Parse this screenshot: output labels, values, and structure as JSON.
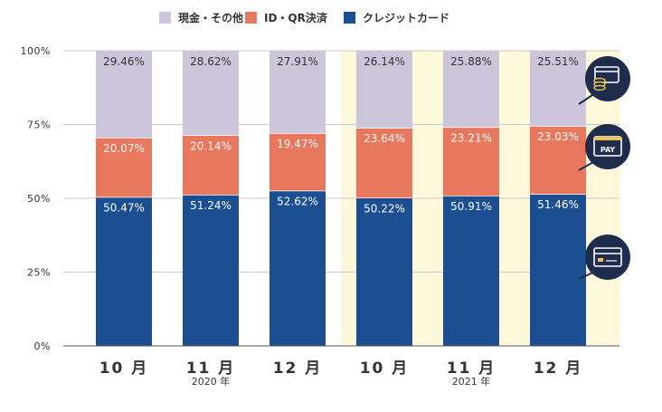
{
  "legend": [
    {
      "label": "現金・その他",
      "color": "#cdc6da"
    },
    {
      "label": "ID・QR決済",
      "color": "#e8785d"
    },
    {
      "label": "クレジットカード",
      "color": "#1c4f91"
    }
  ],
  "chart_data": {
    "type": "bar",
    "stacked": true,
    "categories": [
      "10 月",
      "11 月",
      "12 月",
      "10 月",
      "11 月",
      "12 月"
    ],
    "year_labels": [
      {
        "label": "2020 年",
        "under_index": 1
      },
      {
        "label": "2021 年",
        "under_index": 4
      }
    ],
    "highlight_indices": [
      3,
      4,
      5
    ],
    "highlight_color": "#fdf8d9",
    "series": [
      {
        "name": "クレジットカード",
        "color": "#1c4f91",
        "values": [
          50.47,
          51.24,
          52.62,
          50.22,
          50.91,
          51.46
        ]
      },
      {
        "name": "ID・QR決済",
        "color": "#e8785d",
        "values": [
          20.07,
          20.14,
          19.47,
          23.64,
          23.21,
          23.03
        ]
      },
      {
        "name": "現金・その他",
        "color": "#cdc6da",
        "values": [
          29.46,
          28.62,
          27.91,
          26.14,
          25.88,
          25.51
        ]
      }
    ],
    "value_labels": [
      [
        "50.47%",
        "51.24%",
        "52.62%",
        "50.22%",
        "50.91%",
        "51.46%"
      ],
      [
        "20.07%",
        "20.14%",
        "19.47%",
        "23.64%",
        "23.21%",
        "23.03%"
      ],
      [
        "29.46%",
        "28.62%",
        "27.91%",
        "26.14%",
        "25.88%",
        "25.51%"
      ]
    ],
    "yticks": [
      0,
      25,
      50,
      75,
      100
    ],
    "ytick_labels": [
      "0%",
      "25%",
      "50%",
      "75%",
      "100%"
    ],
    "ylim": [
      0,
      100
    ],
    "title": "",
    "xlabel": "",
    "ylabel": ""
  },
  "icons": [
    {
      "name": "cash-card-icon",
      "series_index": 2
    },
    {
      "name": "pay-icon",
      "series_index": 1,
      "text": "PAY"
    },
    {
      "name": "credit-card-icon",
      "series_index": 0
    }
  ]
}
